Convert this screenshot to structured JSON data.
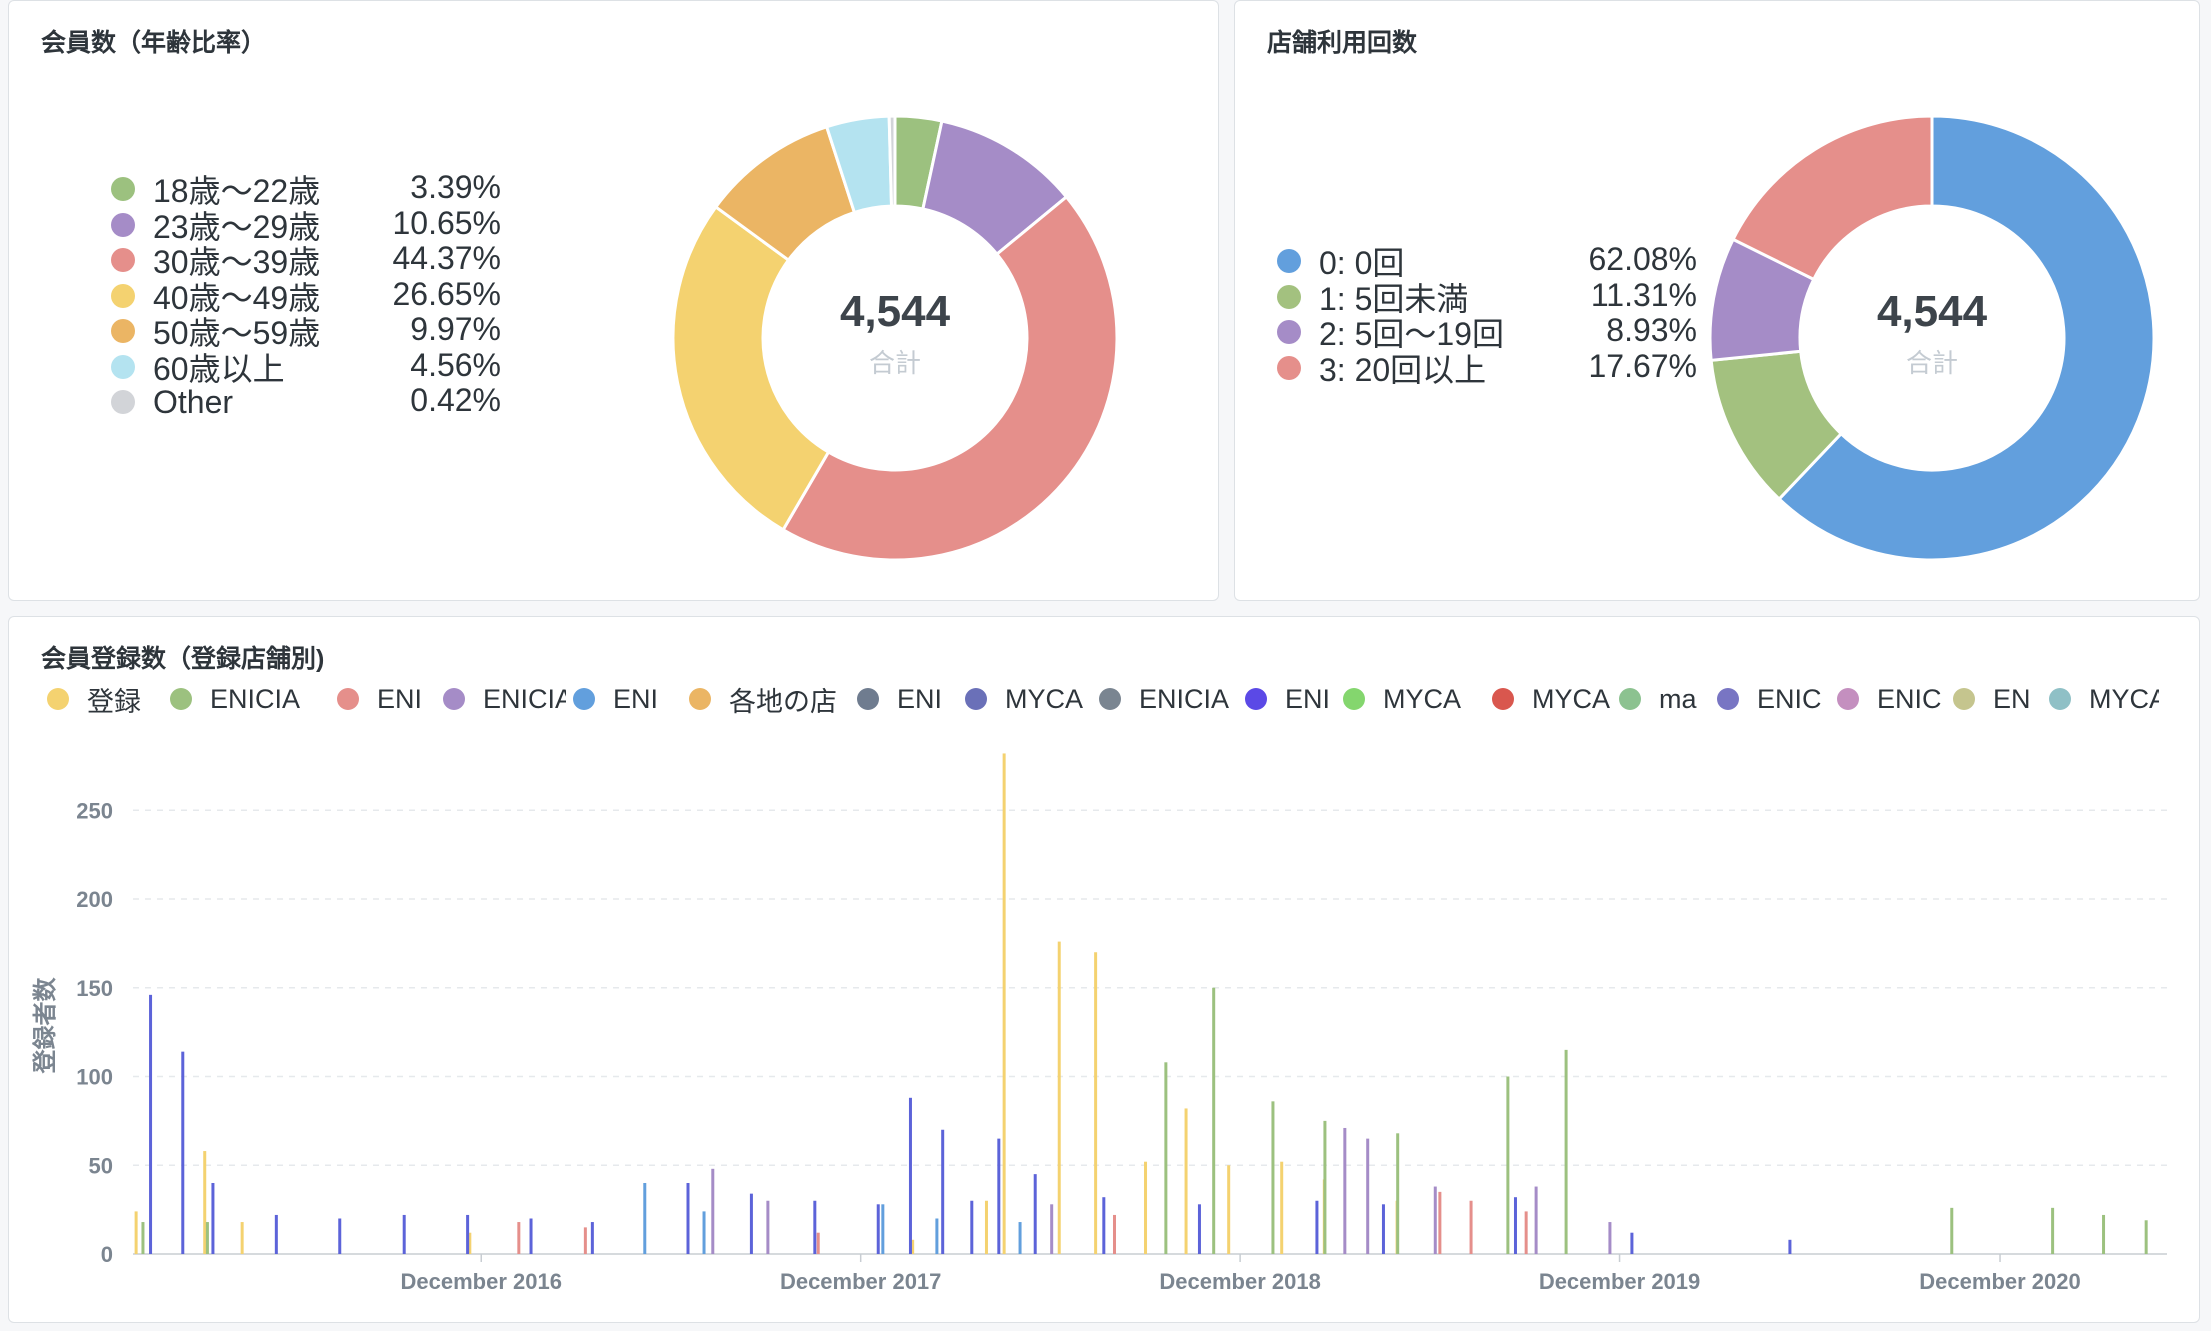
{
  "age_card": {
    "title": "会員数（年齢比率）",
    "total": "4,544",
    "total_label": "合計",
    "legend": [
      {
        "label": "18歳〜22歳",
        "pct": "3.39%"
      },
      {
        "label": "23歳〜29歳",
        "pct": "10.65%"
      },
      {
        "label": "30歳〜39歳",
        "pct": "44.37%"
      },
      {
        "label": "40歳〜49歳",
        "pct": "26.65%"
      },
      {
        "label": "50歳〜59歳",
        "pct": "9.97%"
      },
      {
        "label": "60歳以上",
        "pct": "4.56%"
      },
      {
        "label": "Other",
        "pct": "0.42%"
      }
    ]
  },
  "usage_card": {
    "title": "店舗利用回数",
    "total": "4,544",
    "total_label": "合計",
    "legend": [
      {
        "label": "0: 0回",
        "pct": "62.08%"
      },
      {
        "label": "1: 5回未満",
        "pct": "11.31%"
      },
      {
        "label": "2: 5回〜19回",
        "pct": "8.93%"
      },
      {
        "label": "3: 20回以上",
        "pct": "17.67%"
      }
    ]
  },
  "reg_card": {
    "title": "会員登録数（登録店舗別)",
    "legend": [
      "登録",
      "ENICIA",
      "ENI",
      "ENICIA",
      "ENI",
      "各地の店",
      "ENI",
      "MYCA",
      "ENICIA",
      "ENI",
      "MYCA",
      "MYCA",
      "ma",
      "ENIC",
      "ENIC",
      "EN",
      "MYCA"
    ]
  },
  "chart_data": [
    {
      "type": "pie",
      "title": "会員数（年齢比率）",
      "categories": [
        "18歳〜22歳",
        "23歳〜29歳",
        "30歳〜39歳",
        "40歳〜49歳",
        "50歳〜59歳",
        "60歳以上",
        "Other"
      ],
      "values": [
        3.39,
        10.65,
        44.37,
        26.65,
        9.97,
        4.56,
        0.42
      ],
      "colors": [
        "#9cc17f",
        "#a58cc7",
        "#e58f8b",
        "#f4d270",
        "#ebb564",
        "#b4e3f0",
        "#d2d4d8"
      ],
      "total": 4544,
      "donut": true,
      "legend": "left"
    },
    {
      "type": "pie",
      "title": "店舗利用回数",
      "categories": [
        "0: 0回",
        "1: 5回未満",
        "2: 5回〜19回",
        "3: 20回以上"
      ],
      "values": [
        62.08,
        11.31,
        8.93,
        17.67
      ],
      "colors": [
        "#629fdd",
        "#a3c17f",
        "#a58cc7",
        "#e58f8b"
      ],
      "total": 4544,
      "donut": true,
      "legend": "left"
    },
    {
      "type": "bar",
      "title": "会員登録数（登録店舗別)",
      "ylabel": "登録者数",
      "xlabel": "",
      "ylim": [
        0,
        280
      ],
      "yticks": [
        0,
        50,
        100,
        150,
        200,
        250
      ],
      "xlim": [
        "2016-01-01",
        "2021-05-01"
      ],
      "xticks": [
        {
          "date": "2016-12-01",
          "label": "December 2016"
        },
        {
          "date": "2017-12-01",
          "label": "December 2017"
        },
        {
          "date": "2018-12-01",
          "label": "December 2018"
        },
        {
          "date": "2019-12-01",
          "label": "December 2019"
        },
        {
          "date": "2020-12-01",
          "label": "December 2020"
        }
      ],
      "grid": true,
      "legend": "top",
      "series": [
        {
          "color": "#f4d270",
          "points": [
            [
              "2016-01-04",
              24
            ],
            [
              "2016-03-10",
              58
            ],
            [
              "2016-04-15",
              18
            ],
            [
              "2016-11-20",
              12
            ],
            [
              "2018-01-20",
              8
            ],
            [
              "2018-04-01",
              30
            ],
            [
              "2018-04-18",
              282
            ],
            [
              "2018-06-10",
              176
            ],
            [
              "2018-07-15",
              170
            ],
            [
              "2018-09-01",
              52
            ],
            [
              "2018-10-10",
              82
            ],
            [
              "2018-11-20",
              50
            ],
            [
              "2019-01-10",
              52
            ],
            [
              "2019-02-20",
              42
            ],
            [
              "2019-05-01",
              30
            ]
          ]
        },
        {
          "color": "#9cc17f",
          "points": [
            [
              "2016-01-10",
              18
            ],
            [
              "2016-03-12",
              18
            ],
            [
              "2018-09-20",
              108
            ],
            [
              "2018-11-05",
              150
            ],
            [
              "2019-01-01",
              86
            ],
            [
              "2019-02-20",
              75
            ],
            [
              "2019-05-01",
              68
            ],
            [
              "2019-08-15",
              100
            ],
            [
              "2019-10-10",
              115
            ],
            [
              "2020-10-15",
              26
            ],
            [
              "2021-01-20",
              26
            ],
            [
              "2021-03-10",
              22
            ],
            [
              "2021-04-20",
              19
            ]
          ]
        },
        {
          "color": "#e58f8b",
          "points": [
            [
              "2017-01-05",
              18
            ],
            [
              "2017-03-10",
              15
            ],
            [
              "2017-10-20",
              12
            ],
            [
              "2018-08-01",
              22
            ],
            [
              "2019-06-10",
              35
            ],
            [
              "2019-07-10",
              30
            ],
            [
              "2019-09-01",
              24
            ]
          ]
        },
        {
          "color": "#a58cc7",
          "points": [
            [
              "2017-07-10",
              48
            ],
            [
              "2017-09-01",
              30
            ],
            [
              "2018-06-01",
              28
            ],
            [
              "2019-03-10",
              71
            ],
            [
              "2019-04-01",
              65
            ],
            [
              "2019-06-05",
              38
            ],
            [
              "2019-09-10",
              38
            ],
            [
              "2019-11-20",
              18
            ]
          ]
        },
        {
          "color": "#629fdd",
          "points": [
            [
              "2017-05-05",
              40
            ],
            [
              "2017-07-01",
              24
            ],
            [
              "2017-12-20",
              28
            ],
            [
              "2018-02-10",
              20
            ],
            [
              "2018-05-01",
              18
            ]
          ]
        },
        {
          "color": "#5c63d9",
          "points": [
            [
              "2016-01-15",
              146
            ],
            [
              "2016-02-15",
              114
            ],
            [
              "2016-03-15",
              40
            ],
            [
              "2016-05-15",
              22
            ],
            [
              "2016-07-15",
              20
            ],
            [
              "2016-09-15",
              22
            ],
            [
              "2016-11-15",
              22
            ],
            [
              "2017-01-15",
              20
            ],
            [
              "2017-03-15",
              18
            ],
            [
              "2017-06-15",
              40
            ],
            [
              "2017-08-15",
              34
            ],
            [
              "2017-10-15",
              30
            ],
            [
              "2017-12-15",
              28
            ],
            [
              "2018-01-15",
              88
            ],
            [
              "2018-02-15",
              70
            ],
            [
              "2018-03-15",
              30
            ],
            [
              "2018-04-10",
              65
            ],
            [
              "2018-05-15",
              45
            ],
            [
              "2018-07-20",
              32
            ],
            [
              "2018-10-20",
              28
            ],
            [
              "2019-02-10",
              30
            ],
            [
              "2019-04-15",
              28
            ],
            [
              "2019-08-20",
              32
            ],
            [
              "2019-12-10",
              12
            ],
            [
              "2020-05-10",
              8
            ]
          ]
        }
      ]
    }
  ]
}
